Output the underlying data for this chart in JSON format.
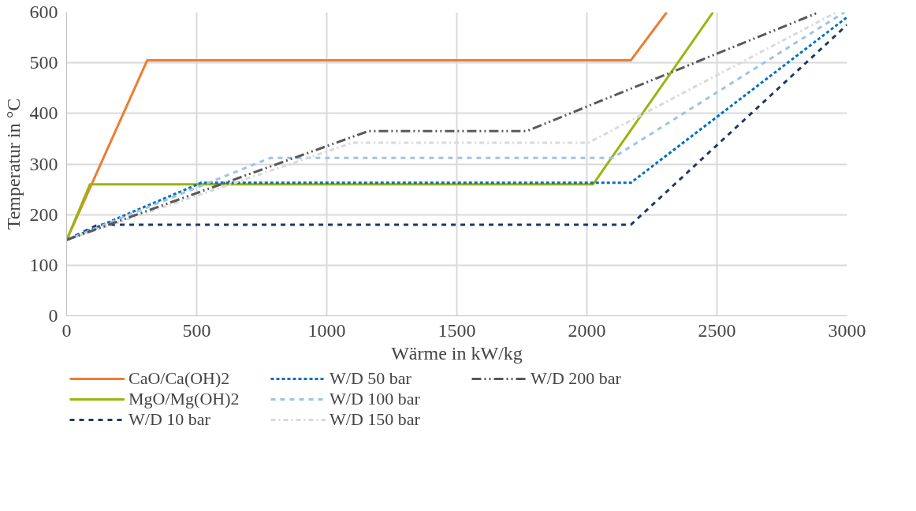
{
  "chart_data": {
    "type": "line",
    "xlabel": "Wärme in kW/kg",
    "ylabel": "Temperatur in °C",
    "xlim": [
      0,
      3000
    ],
    "xticks": [
      0,
      500,
      1000,
      1500,
      2000,
      2500,
      3000
    ],
    "ylim": [
      0,
      600
    ],
    "yticks": [
      0,
      100,
      200,
      300,
      400,
      500,
      600
    ],
    "grid": true,
    "legend": "bottom",
    "marker": "none",
    "series": [
      {
        "name": "CaO/Ca(OH)2",
        "color": "#ed7d31",
        "line_style": "solid",
        "x": [
          0,
          310,
          2169,
          2307
        ],
        "values": [
          150,
          505,
          505,
          600
        ]
      },
      {
        "name": "MgO/Mg(OH)2",
        "color": "#9bb40f",
        "line_style": "solid",
        "x": [
          0,
          90,
          2024,
          2485
        ],
        "values": [
          150,
          260,
          260,
          600
        ]
      },
      {
        "name": "W/D 10 bar",
        "color": "#1f3864",
        "line_style": "dashed",
        "x": [
          0,
          120,
          2169,
          3000
        ],
        "values": [
          150,
          180,
          180,
          575
        ]
      },
      {
        "name": "W/D 50 bar",
        "color": "#0070c0",
        "line_style": "dotted",
        "x": [
          0,
          518,
          2169,
          3000
        ],
        "values": [
          150,
          263,
          263,
          590
        ]
      },
      {
        "name": "W/D 100 bar",
        "color": "#9dc3e6",
        "line_style": "dashed",
        "x": [
          0,
          783,
          2099,
          2990
        ],
        "values": [
          150,
          312,
          312,
          600
        ]
      },
      {
        "name": "W/D 150 bar",
        "color": "#d9d9d9",
        "line_style": "dashdot",
        "x": [
          0,
          1100,
          2006,
          2960
        ],
        "values": [
          150,
          342,
          342,
          600
        ]
      },
      {
        "name": "W/D 200 bar",
        "color": "#595959",
        "line_style": "dashdotdot",
        "x": [
          0,
          1160,
          1768,
          2892
        ],
        "values": [
          150,
          365,
          365,
          600
        ]
      }
    ]
  }
}
